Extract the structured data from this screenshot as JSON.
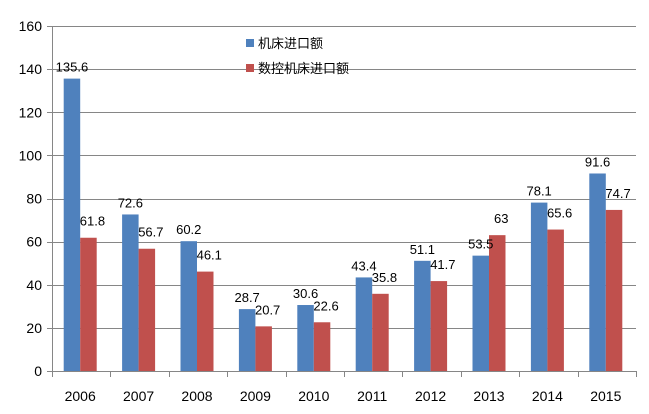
{
  "chart_data": {
    "type": "bar",
    "title": "",
    "xlabel": "",
    "ylabel": "",
    "categories": [
      "2006",
      "2007",
      "2008",
      "2009",
      "2010",
      "2011",
      "2012",
      "2013",
      "2014",
      "2015"
    ],
    "series": [
      {
        "name": "机床进口额",
        "color": "#4f81bd",
        "values": [
          135.6,
          72.6,
          60.2,
          28.7,
          30.6,
          43.4,
          51.1,
          53.5,
          78.1,
          91.6
        ],
        "labels": [
          "135.6",
          "72.6",
          "60.2",
          "28.7",
          "30.6",
          "43.4",
          "51.1",
          "53.5",
          "78.1",
          "91.6"
        ]
      },
      {
        "name": "数控机床进口额",
        "color": "#c0504d",
        "values": [
          61.8,
          56.7,
          46.1,
          20.7,
          22.6,
          35.8,
          41.7,
          63,
          65.6,
          74.7
        ],
        "labels": [
          "61.8",
          "56.7",
          "46.1",
          "20.7",
          "22.6",
          "35.8",
          "41.7",
          "63",
          "65.6",
          "74.7"
        ]
      }
    ],
    "ylim": [
      0,
      160
    ],
    "yticks": [
      0,
      20,
      40,
      60,
      80,
      100,
      120,
      140,
      160
    ],
    "ytick_labels": [
      "0",
      "20",
      "40",
      "60",
      "80",
      "100",
      "120",
      "140",
      "160"
    ],
    "grid": true,
    "gridline_color": "#868686",
    "axis_color": "#868686",
    "legend_position": "top-center"
  }
}
